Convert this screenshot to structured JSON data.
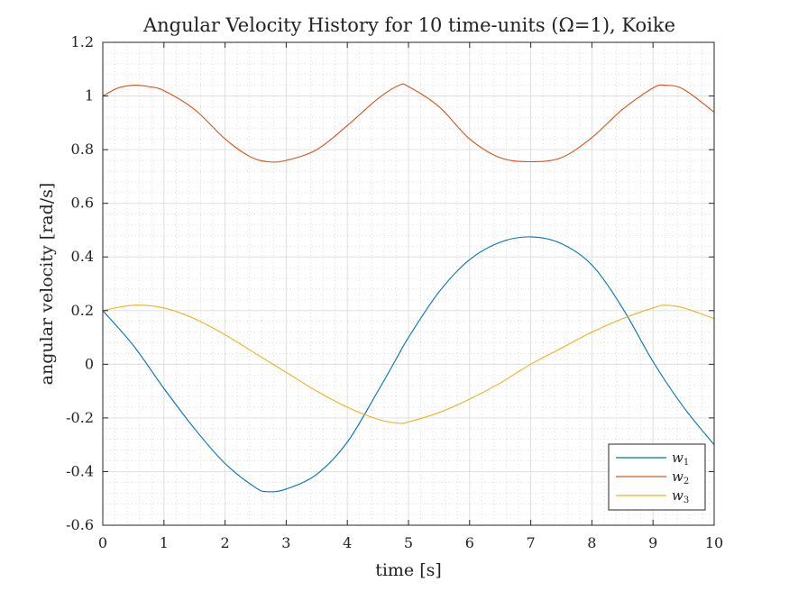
{
  "chart_data": {
    "type": "line",
    "title": "Angular Velocity History for 10 time-units (Ω=1), Koike",
    "xlabel": "time [s]",
    "ylabel": "angular velocity [rad/s]",
    "xlim": [
      0,
      10
    ],
    "ylim": [
      -0.6,
      1.2
    ],
    "xticks": [
      0,
      1,
      2,
      3,
      4,
      5,
      6,
      7,
      8,
      9,
      10
    ],
    "yticks": [
      -0.6,
      -0.4,
      -0.2,
      0,
      0.2,
      0.4,
      0.6,
      0.8,
      1,
      1.2
    ],
    "xtick_labels": [
      "0",
      "1",
      "2",
      "3",
      "4",
      "5",
      "6",
      "7",
      "8",
      "9",
      "10"
    ],
    "ytick_labels": [
      "-0.6",
      "-0.4",
      "-0.2",
      "0",
      "0.2",
      "0.4",
      "0.6",
      "0.8",
      "1",
      "1.2"
    ],
    "grid": true,
    "minor_grid": true,
    "legend_position": "bottom-right",
    "series": [
      {
        "name": "w",
        "subscript": "1",
        "color": "#0072BD",
        "x": [
          0,
          0.5,
          1,
          1.5,
          2,
          2.5,
          2.7,
          3,
          3.5,
          4,
          4.5,
          4.8,
          5,
          5.5,
          6,
          6.5,
          7,
          7.5,
          8,
          8.5,
          9,
          9.5,
          10
        ],
        "y": [
          0.2,
          0.07,
          -0.09,
          -0.24,
          -0.37,
          -0.46,
          -0.475,
          -0.465,
          -0.41,
          -0.29,
          -0.1,
          0.02,
          0.1,
          0.27,
          0.39,
          0.455,
          0.475,
          0.45,
          0.37,
          0.21,
          0.01,
          -0.16,
          -0.3
        ]
      },
      {
        "name": "w",
        "subscript": "2",
        "color": "#D95319",
        "x": [
          0,
          0.25,
          0.5,
          0.75,
          1,
          1.5,
          2,
          2.4,
          2.7,
          3,
          3.5,
          4,
          4.5,
          4.85,
          5,
          5.5,
          6,
          6.5,
          7,
          7.5,
          8,
          8.5,
          9,
          9.2,
          9.5,
          10
        ],
        "y": [
          1.0,
          1.03,
          1.04,
          1.035,
          1.02,
          0.95,
          0.84,
          0.775,
          0.755,
          0.76,
          0.8,
          0.89,
          0.99,
          1.04,
          1.035,
          0.96,
          0.84,
          0.77,
          0.755,
          0.77,
          0.845,
          0.95,
          1.03,
          1.04,
          1.025,
          0.94
        ]
      },
      {
        "name": "w",
        "subscript": "3",
        "color": "#EDB120",
        "x": [
          0,
          0.5,
          1,
          1.5,
          2,
          2.5,
          3,
          3.5,
          4,
          4.5,
          4.85,
          5,
          5.5,
          6,
          6.5,
          7,
          7.5,
          8,
          8.5,
          9,
          9.2,
          9.5,
          10
        ],
        "y": [
          0.2,
          0.22,
          0.21,
          0.17,
          0.11,
          0.04,
          -0.03,
          -0.1,
          -0.16,
          -0.205,
          -0.22,
          -0.215,
          -0.18,
          -0.13,
          -0.07,
          0.0,
          0.06,
          0.12,
          0.17,
          0.21,
          0.22,
          0.21,
          0.17
        ]
      }
    ]
  }
}
